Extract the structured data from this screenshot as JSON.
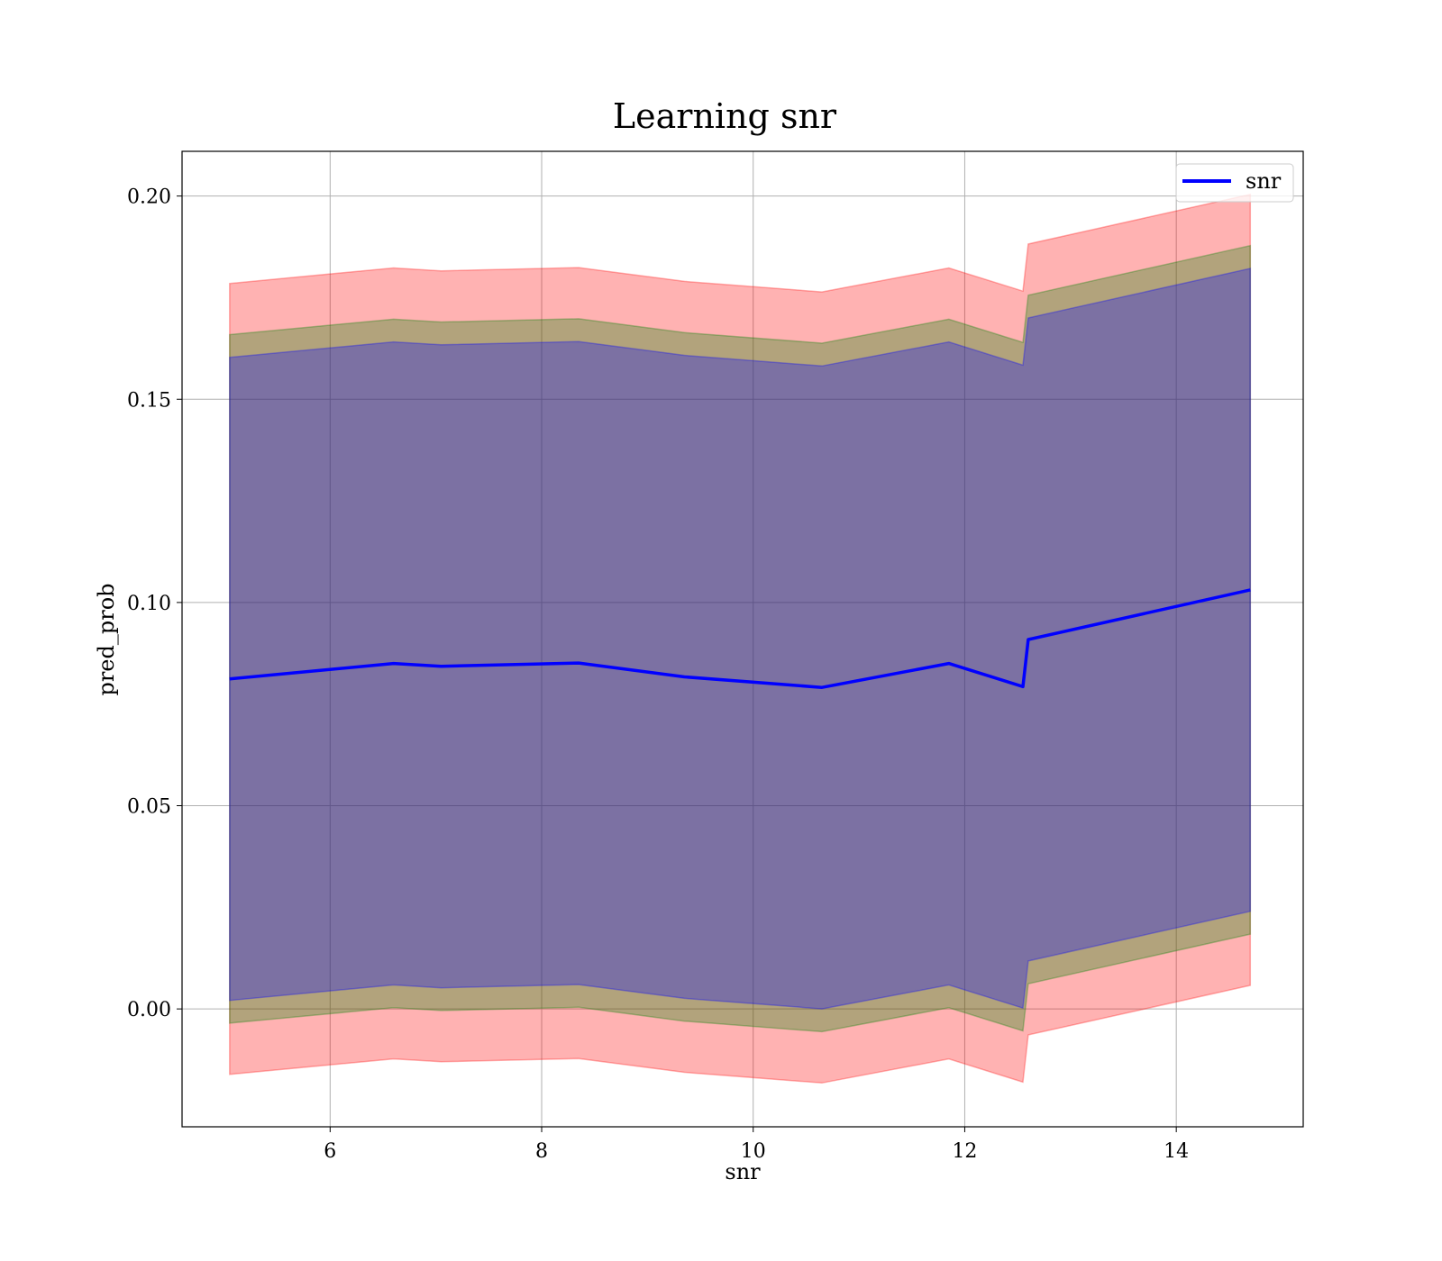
{
  "chart_data": {
    "type": "line",
    "title": "Learning snr",
    "xlabel": "snr",
    "ylabel": "pred_prob",
    "xlim": [
      4.6,
      15.2
    ],
    "ylim": [
      -0.029,
      0.211
    ],
    "xticks": [
      6,
      8,
      10,
      12,
      14
    ],
    "xtick_labels": [
      "6",
      "8",
      "10",
      "12",
      "14"
    ],
    "yticks": [
      0.0,
      0.05,
      0.1,
      0.15,
      0.2
    ],
    "ytick_labels": [
      "0.00",
      "0.05",
      "0.10",
      "0.15",
      "0.20"
    ],
    "grid": true,
    "legend": {
      "position": "upper right",
      "entries": [
        "snr"
      ]
    },
    "x": [
      5.05,
      6.6,
      7.05,
      8.35,
      9.35,
      10.65,
      11.85,
      12.55,
      12.6,
      14.7
    ],
    "series": [
      {
        "name": "snr",
        "color": "#0000ff",
        "values": [
          0.0812,
          0.085,
          0.0843,
          0.0851,
          0.0817,
          0.0791,
          0.085,
          0.0793,
          0.0909,
          0.1031
        ]
      }
    ],
    "bands": [
      {
        "color": "#ff0000",
        "opacity": 0.3,
        "upper": [
          0.1785,
          0.1823,
          0.1816,
          0.1824,
          0.179,
          0.1764,
          0.1823,
          0.1766,
          0.1882,
          0.2004
        ],
        "lower": [
          -0.0161,
          -0.0123,
          -0.013,
          -0.0122,
          -0.0156,
          -0.0182,
          -0.0123,
          -0.018,
          -0.0064,
          0.0058
        ]
      },
      {
        "color": "#008000",
        "opacity": 0.3,
        "upper": [
          0.1659,
          0.1697,
          0.169,
          0.1698,
          0.1664,
          0.1638,
          0.1697,
          0.164,
          0.1756,
          0.1878
        ],
        "lower": [
          -0.0035,
          0.0003,
          -0.0004,
          0.0004,
          -0.003,
          -0.0056,
          0.0003,
          -0.0054,
          0.0062,
          0.0184
        ]
      },
      {
        "color": "#0000ff",
        "opacity": 0.3,
        "upper": [
          0.1603,
          0.1641,
          0.1634,
          0.1642,
          0.1608,
          0.1582,
          0.1641,
          0.1584,
          0.17,
          0.1822
        ],
        "lower": [
          0.0021,
          0.0059,
          0.0052,
          0.006,
          0.0026,
          0.0,
          0.0059,
          0.0002,
          0.0118,
          0.024
        ]
      }
    ]
  }
}
